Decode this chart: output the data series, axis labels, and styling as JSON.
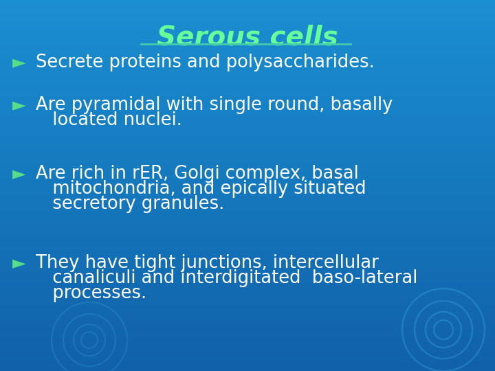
{
  "title": "Serous cells",
  "title_color": "#66FF99",
  "title_fontsize": 28,
  "bg_color": "#1A8FD1",
  "bg_color_bottom": "#1570B8",
  "bullet_symbol": "►",
  "bullet_color": "#55DD88",
  "text_color": "#FFFFFF",
  "text_fontsize": 18.5,
  "underline_color": "#44CCAA",
  "bullet_lines": [
    [
      "Secrete proteins and polysaccharides."
    ],
    [
      "Are pyramidal with single round, basally",
      "   located nuclei."
    ],
    [
      "Are rich in rER, Golgi complex, basal",
      "   mitochondria, and epically situated",
      "   secretory granules."
    ],
    [
      "They have tight junctions, intercellular",
      "   canaliculi and interdigitated  baso-lateral",
      "   processes."
    ]
  ],
  "figsize": [
    7.2,
    5.4
  ],
  "dpi": 100
}
